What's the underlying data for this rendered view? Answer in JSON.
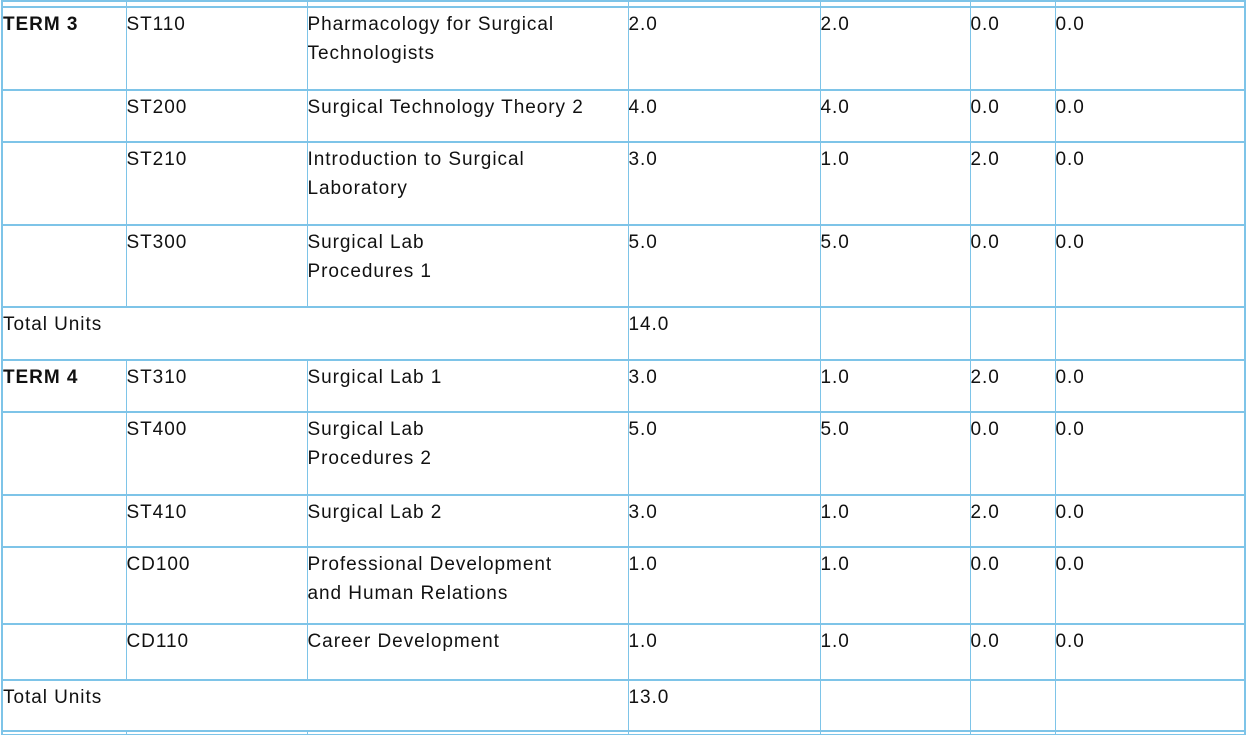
{
  "styles": {
    "highlight_fill": "#c5e5f4",
    "border_color": "#7ec4e8",
    "total_row_shade": "#efefef",
    "text_color": "#111111"
  },
  "table": {
    "rows": [
      {
        "type": "course",
        "term": "TERM 3",
        "code": "ST110",
        "title_lines": [
          "Pharmacology for Surgical",
          "Technologists"
        ],
        "units": [
          "2.0",
          "2.0",
          "0.0",
          "0.0"
        ],
        "highlighted": true
      },
      {
        "type": "course",
        "term": "",
        "code": "ST200",
        "title_lines": [
          "Surgical Technology Theory 2"
        ],
        "units": [
          "4.0",
          "4.0",
          "0.0",
          "0.0"
        ],
        "highlighted": false
      },
      {
        "type": "course",
        "term": "",
        "code": "ST210",
        "title_lines": [
          "Introduction to Surgical",
          "Laboratory"
        ],
        "units": [
          "3.0",
          "1.0",
          "2.0",
          "0.0"
        ],
        "highlighted": false
      },
      {
        "type": "course",
        "term": "",
        "code": "ST300",
        "title_lines": [
          "Surgical Lab",
          "Procedures 1"
        ],
        "units": [
          "5.0",
          "5.0",
          "0.0",
          "0.0"
        ],
        "highlighted": false
      },
      {
        "type": "total",
        "label": "Total Units",
        "total": "14.0",
        "shaded": false
      },
      {
        "type": "course",
        "term": "TERM 4",
        "code": "ST310",
        "title_lines": [
          "Surgical Lab 1"
        ],
        "units": [
          "3.0",
          "1.0",
          "2.0",
          "0.0"
        ],
        "highlighted": true
      },
      {
        "type": "course",
        "term": "",
        "code": "ST400",
        "title_lines": [
          "Surgical Lab",
          "Procedures 2"
        ],
        "units": [
          "5.0",
          "5.0",
          "0.0",
          "0.0"
        ],
        "highlighted": false
      },
      {
        "type": "course",
        "term": "",
        "code": "ST410",
        "title_lines": [
          "Surgical Lab 2"
        ],
        "units": [
          "3.0",
          "1.0",
          "2.0",
          "0.0"
        ],
        "highlighted": false
      },
      {
        "type": "course",
        "term": "",
        "code": "CD100",
        "title_lines": [
          "Professional Development",
          "and Human Relations"
        ],
        "units": [
          "1.0",
          "1.0",
          "0.0",
          "0.0"
        ],
        "highlighted": false
      },
      {
        "type": "course",
        "term": "",
        "code": "CD110",
        "title_lines": [
          "Career Development"
        ],
        "units": [
          "1.0",
          "1.0",
          "0.0",
          "0.0"
        ],
        "highlighted": false
      },
      {
        "type": "total",
        "label": "Total Units",
        "total": "13.0",
        "shaded": true
      }
    ]
  }
}
